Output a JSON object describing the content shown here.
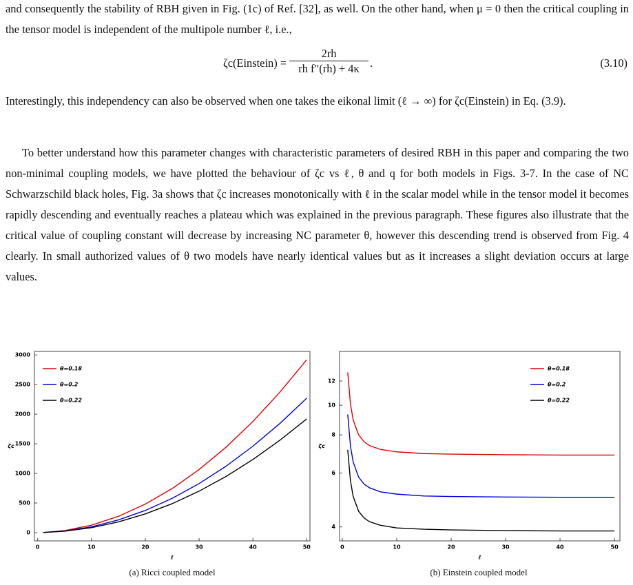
{
  "text": {
    "paragraphs": [
      "and consequently the stability of RBH given in Fig. (1c) of Ref. [32], as well. On the other hand, when μ = 0 then the critical coupling in the tensor model is independent of the multipole number ℓ, i.e.,",
      "Interestingly, this independency can also be observed when one takes the eikonal limit (ℓ → ∞) for ζc(Einstein) in Eq. (3.9).",
      "To better understand how this parameter changes with characteristic parameters of desired RBH in this paper and comparing the two non-minimal coupling models, we have plotted the behaviour of ζc vs ℓ, θ and q for both models in Figs. 3-7. In the case of NC Schwarzschild black holes, Fig. 3a shows that ζc increases monotonically with ℓ in the scalar model while in the tensor model it becomes rapidly descending and eventually reaches a plateau which was explained in the previous paragraph. These figures also illustrate that the critical value of coupling constant will decrease by increasing NC parameter θ, however this descending trend is observed from Fig. 4 clearly. In small authorized values of θ two models have nearly identical values but as it increases a slight deviation occurs at large values."
    ]
  },
  "equation": {
    "lhs": "ζc(Einstein) =",
    "numerator": "2rh",
    "denominator": "rh f″(rh) + 4κ",
    "end": ".",
    "number": "(3.10)"
  },
  "chart_data": [
    {
      "type": "line",
      "caption": "(a) Ricci coupled model",
      "x_label": "ℓ",
      "y_label": "ζc",
      "x": [
        1,
        5,
        10,
        15,
        20,
        25,
        30,
        35,
        40,
        45,
        50
      ],
      "series": [
        {
          "name": "θ=0.18",
          "color": "#e00000",
          "values": [
            2.3,
            34,
            126,
            275,
            481,
            744,
            1065,
            1442,
            1877,
            2370,
            2920
          ]
        },
        {
          "name": "θ=0.2",
          "color": "#0000e0",
          "values": [
            1.8,
            27,
            98,
            214,
            374,
            579,
            828,
            1121,
            1460,
            1842,
            2270
          ]
        },
        {
          "name": "θ=0.22",
          "color": "#000000",
          "values": [
            1.5,
            23,
            83,
            181,
            316,
            489,
            700,
            948,
            1235,
            1559,
            1920
          ]
        }
      ],
      "xlim": [
        -0.6,
        50.6
      ],
      "xticks": [
        0,
        10,
        20,
        30,
        40,
        50
      ],
      "ylim": [
        -140,
        3060
      ],
      "yticks": [
        0,
        500,
        1000,
        1500,
        2000,
        2500,
        3000
      ],
      "yscale": "linear",
      "legend": "upper left"
    },
    {
      "type": "line",
      "caption": "(b) Einstein coupled model",
      "x_label": "ℓ",
      "y_label": "ζc",
      "x": [
        1,
        1.5,
        2,
        3,
        4,
        5,
        7,
        10,
        15,
        20,
        30,
        40,
        50
      ],
      "series": [
        {
          "name": "θ=0.18",
          "color": "#e00000",
          "values": [
            12.8,
            10.09,
            8.95,
            8.0,
            7.59,
            7.38,
            7.17,
            7.04,
            6.95,
            6.92,
            6.89,
            6.87,
            6.87
          ]
        },
        {
          "name": "θ=0.2",
          "color": "#0000e0",
          "values": [
            9.33,
            7.35,
            6.52,
            5.82,
            5.52,
            5.37,
            5.21,
            5.12,
            5.05,
            5.03,
            5.01,
            5.0,
            5.0
          ]
        },
        {
          "name": "θ=0.22",
          "color": "#000000",
          "values": [
            7.15,
            5.66,
            5.03,
            4.5,
            4.28,
            4.16,
            4.05,
            3.97,
            3.93,
            3.91,
            3.89,
            3.88,
            3.88
          ]
        }
      ],
      "xlim": [
        -0.5,
        51
      ],
      "xticks": [
        0,
        10,
        20,
        30,
        40,
        50
      ],
      "ylim": [
        3.6,
        15.0
      ],
      "yticks": [
        4,
        6,
        8,
        10,
        12
      ],
      "yscale": "log",
      "legend": "upper right"
    }
  ]
}
